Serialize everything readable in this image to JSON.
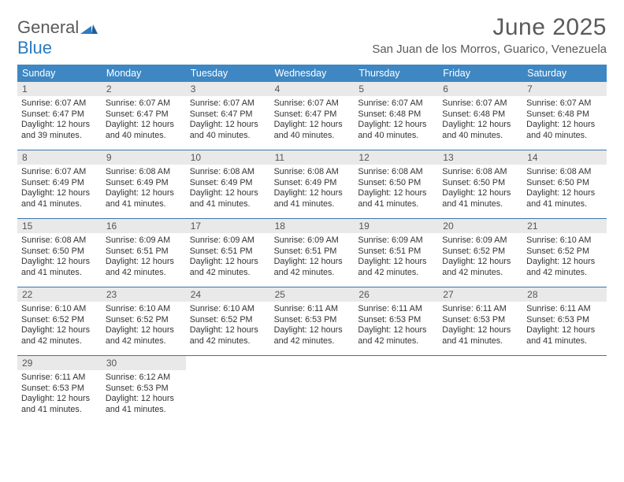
{
  "logo": {
    "text1": "General",
    "text2": "Blue"
  },
  "title": "June 2025",
  "location": "San Juan de los Morros, Guarico, Venezuela",
  "colors": {
    "header_bg": "#3e87c3",
    "header_text": "#ffffff",
    "week_border": "#3e73a8",
    "daynum_bg": "#e9e9e9",
    "text": "#333333",
    "title_text": "#5a5a5a",
    "logo_blue": "#2a7bbf"
  },
  "weekdays": [
    "Sunday",
    "Monday",
    "Tuesday",
    "Wednesday",
    "Thursday",
    "Friday",
    "Saturday"
  ],
  "days": [
    {
      "n": 1,
      "sr": "6:07 AM",
      "ss": "6:47 PM",
      "dl": "12 hours and 39 minutes."
    },
    {
      "n": 2,
      "sr": "6:07 AM",
      "ss": "6:47 PM",
      "dl": "12 hours and 40 minutes."
    },
    {
      "n": 3,
      "sr": "6:07 AM",
      "ss": "6:47 PM",
      "dl": "12 hours and 40 minutes."
    },
    {
      "n": 4,
      "sr": "6:07 AM",
      "ss": "6:47 PM",
      "dl": "12 hours and 40 minutes."
    },
    {
      "n": 5,
      "sr": "6:07 AM",
      "ss": "6:48 PM",
      "dl": "12 hours and 40 minutes."
    },
    {
      "n": 6,
      "sr": "6:07 AM",
      "ss": "6:48 PM",
      "dl": "12 hours and 40 minutes."
    },
    {
      "n": 7,
      "sr": "6:07 AM",
      "ss": "6:48 PM",
      "dl": "12 hours and 40 minutes."
    },
    {
      "n": 8,
      "sr": "6:07 AM",
      "ss": "6:49 PM",
      "dl": "12 hours and 41 minutes."
    },
    {
      "n": 9,
      "sr": "6:08 AM",
      "ss": "6:49 PM",
      "dl": "12 hours and 41 minutes."
    },
    {
      "n": 10,
      "sr": "6:08 AM",
      "ss": "6:49 PM",
      "dl": "12 hours and 41 minutes."
    },
    {
      "n": 11,
      "sr": "6:08 AM",
      "ss": "6:49 PM",
      "dl": "12 hours and 41 minutes."
    },
    {
      "n": 12,
      "sr": "6:08 AM",
      "ss": "6:50 PM",
      "dl": "12 hours and 41 minutes."
    },
    {
      "n": 13,
      "sr": "6:08 AM",
      "ss": "6:50 PM",
      "dl": "12 hours and 41 minutes."
    },
    {
      "n": 14,
      "sr": "6:08 AM",
      "ss": "6:50 PM",
      "dl": "12 hours and 41 minutes."
    },
    {
      "n": 15,
      "sr": "6:08 AM",
      "ss": "6:50 PM",
      "dl": "12 hours and 41 minutes."
    },
    {
      "n": 16,
      "sr": "6:09 AM",
      "ss": "6:51 PM",
      "dl": "12 hours and 42 minutes."
    },
    {
      "n": 17,
      "sr": "6:09 AM",
      "ss": "6:51 PM",
      "dl": "12 hours and 42 minutes."
    },
    {
      "n": 18,
      "sr": "6:09 AM",
      "ss": "6:51 PM",
      "dl": "12 hours and 42 minutes."
    },
    {
      "n": 19,
      "sr": "6:09 AM",
      "ss": "6:51 PM",
      "dl": "12 hours and 42 minutes."
    },
    {
      "n": 20,
      "sr": "6:09 AM",
      "ss": "6:52 PM",
      "dl": "12 hours and 42 minutes."
    },
    {
      "n": 21,
      "sr": "6:10 AM",
      "ss": "6:52 PM",
      "dl": "12 hours and 42 minutes."
    },
    {
      "n": 22,
      "sr": "6:10 AM",
      "ss": "6:52 PM",
      "dl": "12 hours and 42 minutes."
    },
    {
      "n": 23,
      "sr": "6:10 AM",
      "ss": "6:52 PM",
      "dl": "12 hours and 42 minutes."
    },
    {
      "n": 24,
      "sr": "6:10 AM",
      "ss": "6:52 PM",
      "dl": "12 hours and 42 minutes."
    },
    {
      "n": 25,
      "sr": "6:11 AM",
      "ss": "6:53 PM",
      "dl": "12 hours and 42 minutes."
    },
    {
      "n": 26,
      "sr": "6:11 AM",
      "ss": "6:53 PM",
      "dl": "12 hours and 42 minutes."
    },
    {
      "n": 27,
      "sr": "6:11 AM",
      "ss": "6:53 PM",
      "dl": "12 hours and 41 minutes."
    },
    {
      "n": 28,
      "sr": "6:11 AM",
      "ss": "6:53 PM",
      "dl": "12 hours and 41 minutes."
    },
    {
      "n": 29,
      "sr": "6:11 AM",
      "ss": "6:53 PM",
      "dl": "12 hours and 41 minutes."
    },
    {
      "n": 30,
      "sr": "6:12 AM",
      "ss": "6:53 PM",
      "dl": "12 hours and 41 minutes."
    }
  ],
  "labels": {
    "sunrise": "Sunrise:",
    "sunset": "Sunset:",
    "daylight": "Daylight:"
  },
  "layout": {
    "start_offset": 0,
    "cells": 35
  }
}
